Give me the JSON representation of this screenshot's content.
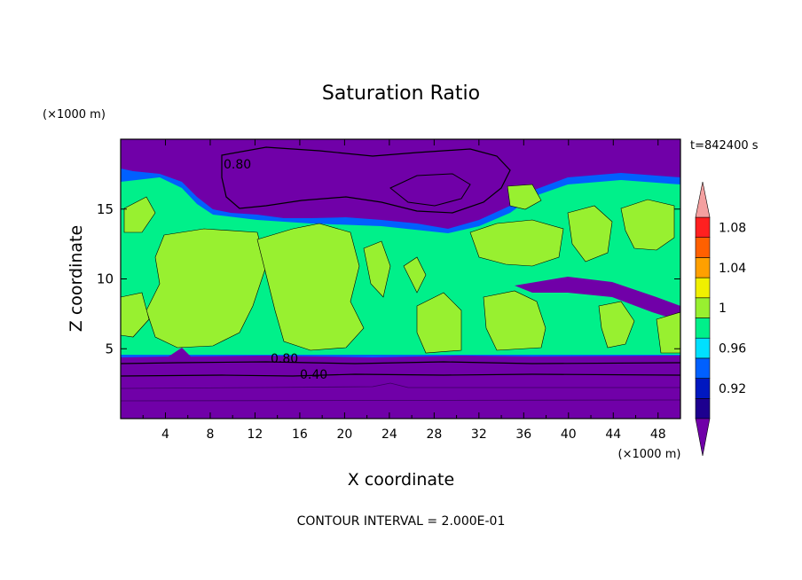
{
  "chart_data": {
    "type": "heatmap",
    "title": "Saturation Ratio",
    "xlabel": "X coordinate",
    "ylabel": "Z coordinate",
    "x_unit": "(×1000 m)",
    "y_unit": "(×1000 m)",
    "time_label": "t=842400 s",
    "footer": "CONTOUR INTERVAL = 2.000E-01",
    "xlim": [
      0,
      50
    ],
    "ylim": [
      0,
      20
    ],
    "x_ticks": [
      "4",
      "8",
      "12",
      "16",
      "20",
      "24",
      "28",
      "32",
      "36",
      "40",
      "44",
      "48"
    ],
    "y_ticks": [
      "5",
      "10",
      "15"
    ],
    "colorbar": {
      "levels": [
        0.9,
        0.92,
        0.94,
        0.96,
        0.98,
        1.0,
        1.02,
        1.04,
        1.06,
        1.08,
        1.1
      ],
      "labels": [
        "0.92",
        "0.96",
        "1",
        "1.04",
        "1.08"
      ],
      "colors": [
        "#1d008f",
        "#0018c0",
        "#0060ff",
        "#00e0ff",
        "#00f08a",
        "#98f030",
        "#f0f000",
        "#ffa000",
        "#ff6000",
        "#ff2020"
      ],
      "under_color": "#7000a8",
      "over_color": "#f4a0a0"
    },
    "contour_labels": [
      "0.80",
      "0.80",
      "0.40"
    ],
    "colors": {
      "dry": "#7000a8",
      "moist": "#00f08a",
      "supersaturated": "#98f030",
      "background": "#0060ff"
    }
  }
}
